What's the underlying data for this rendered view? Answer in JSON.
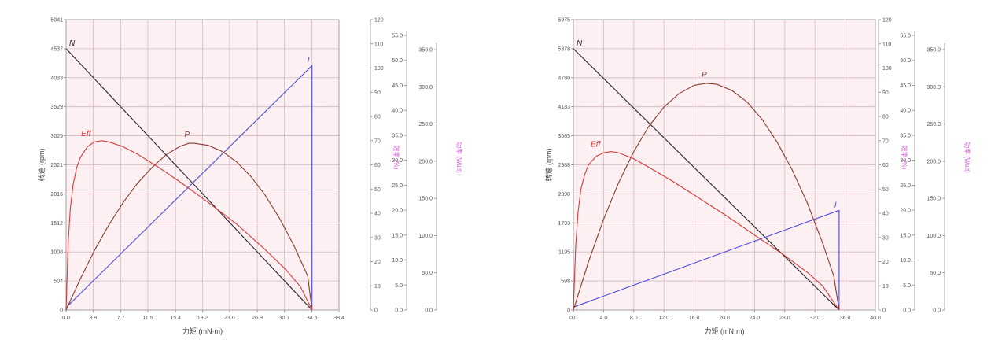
{
  "chart_data": [
    {
      "type": "line",
      "xlabel": "力矩 (mN·m)",
      "ylabel": "转速 (rpm)",
      "y2label": "效率 (%)",
      "y3label": "功率 (Watt)",
      "x_ticks": [
        "0.0",
        "3.8",
        "7.7",
        "11.5",
        "15.4",
        "19.2",
        "23.0",
        "26.9",
        "30.7",
        "34.6",
        "38.4"
      ],
      "xlim": [
        0,
        38.4
      ],
      "y_ticks": [
        "0",
        "504",
        "1008",
        "1512",
        "2016",
        "2521",
        "3025",
        "3529",
        "4033",
        "4537",
        "5041"
      ],
      "ylim": [
        0,
        5041
      ],
      "y2_ticks": [
        "0",
        "10",
        "20",
        "30",
        "40",
        "50",
        "60",
        "70",
        "80",
        "90",
        "100",
        "110",
        "120"
      ],
      "y2lim": [
        0,
        120
      ],
      "y3_ticks": [
        "0.0",
        "5.0",
        "10.0",
        "15.0",
        "20.0",
        "25.0",
        "30.0",
        "35.0",
        "40.0",
        "45.0",
        "50.0",
        "55.0"
      ],
      "y3lim": [
        0,
        55
      ],
      "y4_ticks": [
        "0.0",
        "50.0",
        "100.0",
        "150.0",
        "200.0",
        "250.0",
        "300.0",
        "350.0"
      ],
      "y4lim": [
        0,
        350
      ],
      "grid": true,
      "series": [
        {
          "name": "N",
          "color": "#222222",
          "x": [
            0,
            34.6
          ],
          "y": [
            4537,
            0
          ]
        },
        {
          "name": "I",
          "color": "#4a4ae0",
          "x": [
            0,
            34.6,
            34.6
          ],
          "y": [
            0.5,
            50.5,
            0
          ]
        },
        {
          "name": "P",
          "color": "#8b3a2a",
          "x": [
            0,
            2,
            4,
            6,
            8,
            10,
            12,
            14,
            16,
            17.3,
            18,
            20,
            22,
            24,
            26,
            28,
            30,
            32,
            34,
            34.6
          ],
          "y": [
            0,
            6.0,
            11.5,
            16.4,
            20.7,
            24.4,
            27.4,
            29.9,
            31.6,
            32.2,
            32.2,
            31.8,
            30.6,
            28.6,
            25.8,
            22.2,
            17.8,
            12.6,
            6.6,
            0
          ]
        },
        {
          "name": "Eff",
          "color": "#d63a3a",
          "x": [
            0,
            0.3,
            0.6,
            1.0,
            1.5,
            2.0,
            3.0,
            4.0,
            5.0,
            6.0,
            8.0,
            10.0,
            13.0,
            16.0,
            20.0,
            24.0,
            28.0,
            31.0,
            33.0,
            34.6
          ],
          "y": [
            0,
            28,
            42,
            52,
            59,
            63,
            67.5,
            69.5,
            70,
            69.5,
            67.5,
            64.5,
            59,
            53,
            44.5,
            35.5,
            25,
            16.5,
            9.5,
            0
          ]
        }
      ]
    },
    {
      "type": "line",
      "xlabel": "力矩 (mN·m)",
      "ylabel": "转速 (rpm)",
      "y2label": "效率 (%)",
      "y3label": "功率 (Watt)",
      "x_ticks": [
        "0.0",
        "4.0",
        "8.0",
        "12.0",
        "16.0",
        "20.0",
        "24.0",
        "28.0",
        "32.0",
        "36.0",
        "40.0"
      ],
      "xlim": [
        0,
        40
      ],
      "y_ticks": [
        "0",
        "598",
        "1195",
        "1793",
        "2390",
        "2988",
        "3585",
        "4183",
        "4780",
        "5378",
        "5975"
      ],
      "ylim": [
        0,
        5975
      ],
      "y2_ticks": [
        "0",
        "10",
        "20",
        "30",
        "40",
        "50",
        "60",
        "70",
        "80",
        "90",
        "100",
        "110",
        "120"
      ],
      "y2lim": [
        0,
        120
      ],
      "y3_ticks": [
        "0.0",
        "5.0",
        "10.0",
        "15.0",
        "20.0",
        "25.0",
        "30.0",
        "35.0",
        "40.0",
        "45.0",
        "50.0",
        "55.0"
      ],
      "y3lim": [
        0,
        55
      ],
      "y4_ticks": [
        "0.0",
        "50.0",
        "100.0",
        "150.0",
        "200.0",
        "250.0",
        "300.0",
        "350.0"
      ],
      "y4lim": [
        0,
        350
      ],
      "grid": true,
      "series": [
        {
          "name": "N",
          "color": "#222222",
          "x": [
            0,
            35.2
          ],
          "y": [
            5378,
            0
          ]
        },
        {
          "name": "I",
          "color": "#4a4ae0",
          "x": [
            0,
            35.2,
            35.2
          ],
          "y": [
            0.6,
            20.6,
            0
          ]
        },
        {
          "name": "P",
          "color": "#8b3a2a",
          "x": [
            0,
            2,
            4,
            6,
            8,
            10,
            12,
            14,
            16,
            17.6,
            19,
            21,
            23,
            25,
            27,
            29,
            31,
            33,
            34.5,
            35.2
          ],
          "y": [
            0,
            9.3,
            17.5,
            24.6,
            30.6,
            35.5,
            39.2,
            41.8,
            43.4,
            43.8,
            43.6,
            42.4,
            40.2,
            36.8,
            32.4,
            27.0,
            20.6,
            13.0,
            6.5,
            0
          ]
        },
        {
          "name": "Eff",
          "color": "#d63a3a",
          "x": [
            0,
            0.3,
            0.6,
            1.0,
            1.5,
            2.0,
            3.0,
            4.0,
            5.0,
            6.0,
            8.0,
            10.0,
            13.0,
            16.0,
            20.0,
            24.0,
            28.0,
            31.0,
            33.0,
            35.2
          ],
          "y": [
            0,
            26,
            40,
            50,
            56,
            60,
            63.5,
            65,
            65.5,
            65,
            62.5,
            59,
            53.5,
            47.5,
            39.5,
            31,
            22.5,
            15.5,
            10,
            0
          ]
        }
      ]
    }
  ]
}
